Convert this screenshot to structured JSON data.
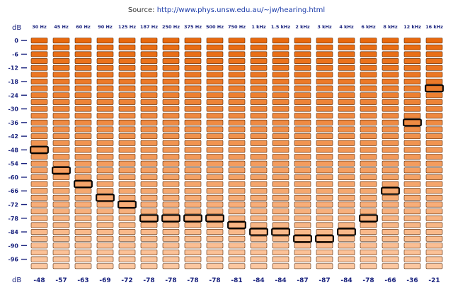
{
  "source": {
    "prefix": "Source: ",
    "url": "http://www.phys.unsw.edu.au/~jw/hearing.html"
  },
  "colors": {
    "top": "#e8690e",
    "bottom": "#fcc7a0",
    "border": "#5a2a08",
    "highlight": "#000000",
    "label": "#1a237e"
  },
  "chart_data": {
    "type": "table",
    "ylabel_top": "dB",
    "ylabel_bottom": "dB",
    "levels_db": [
      0,
      -3,
      -6,
      -9,
      -12,
      -15,
      -18,
      -21,
      -24,
      -27,
      -30,
      -33,
      -36,
      -39,
      -42,
      -45,
      -48,
      -51,
      -54,
      -57,
      -60,
      -63,
      -66,
      -69,
      -72,
      -75,
      -78,
      -81,
      -84,
      -87,
      -90,
      -93,
      -96,
      -99
    ],
    "y_tick_labels": [
      "0",
      "-6",
      "-12",
      "-18",
      "-24",
      "-30",
      "-36",
      "-42",
      "-48",
      "-54",
      "-60",
      "-66",
      "-72",
      "-78",
      "-84",
      "-90",
      "-96"
    ],
    "categories": [
      "30 Hz",
      "45 Hz",
      "60 Hz",
      "90 Hz",
      "125 Hz",
      "187 Hz",
      "250 Hz",
      "375 Hz",
      "500 Hz",
      "750 Hz",
      "1 kHz",
      "1.5 kHz",
      "2 kHz",
      "3 kHz",
      "4 kHz",
      "6 kHz",
      "8 kHz",
      "12 kHz",
      "16 kHz"
    ],
    "values": [
      -48,
      -57,
      -63,
      -69,
      -72,
      -78,
      -78,
      -78,
      -78,
      -81,
      -84,
      -84,
      -87,
      -87,
      -84,
      -78,
      -66,
      -36,
      -21
    ]
  }
}
